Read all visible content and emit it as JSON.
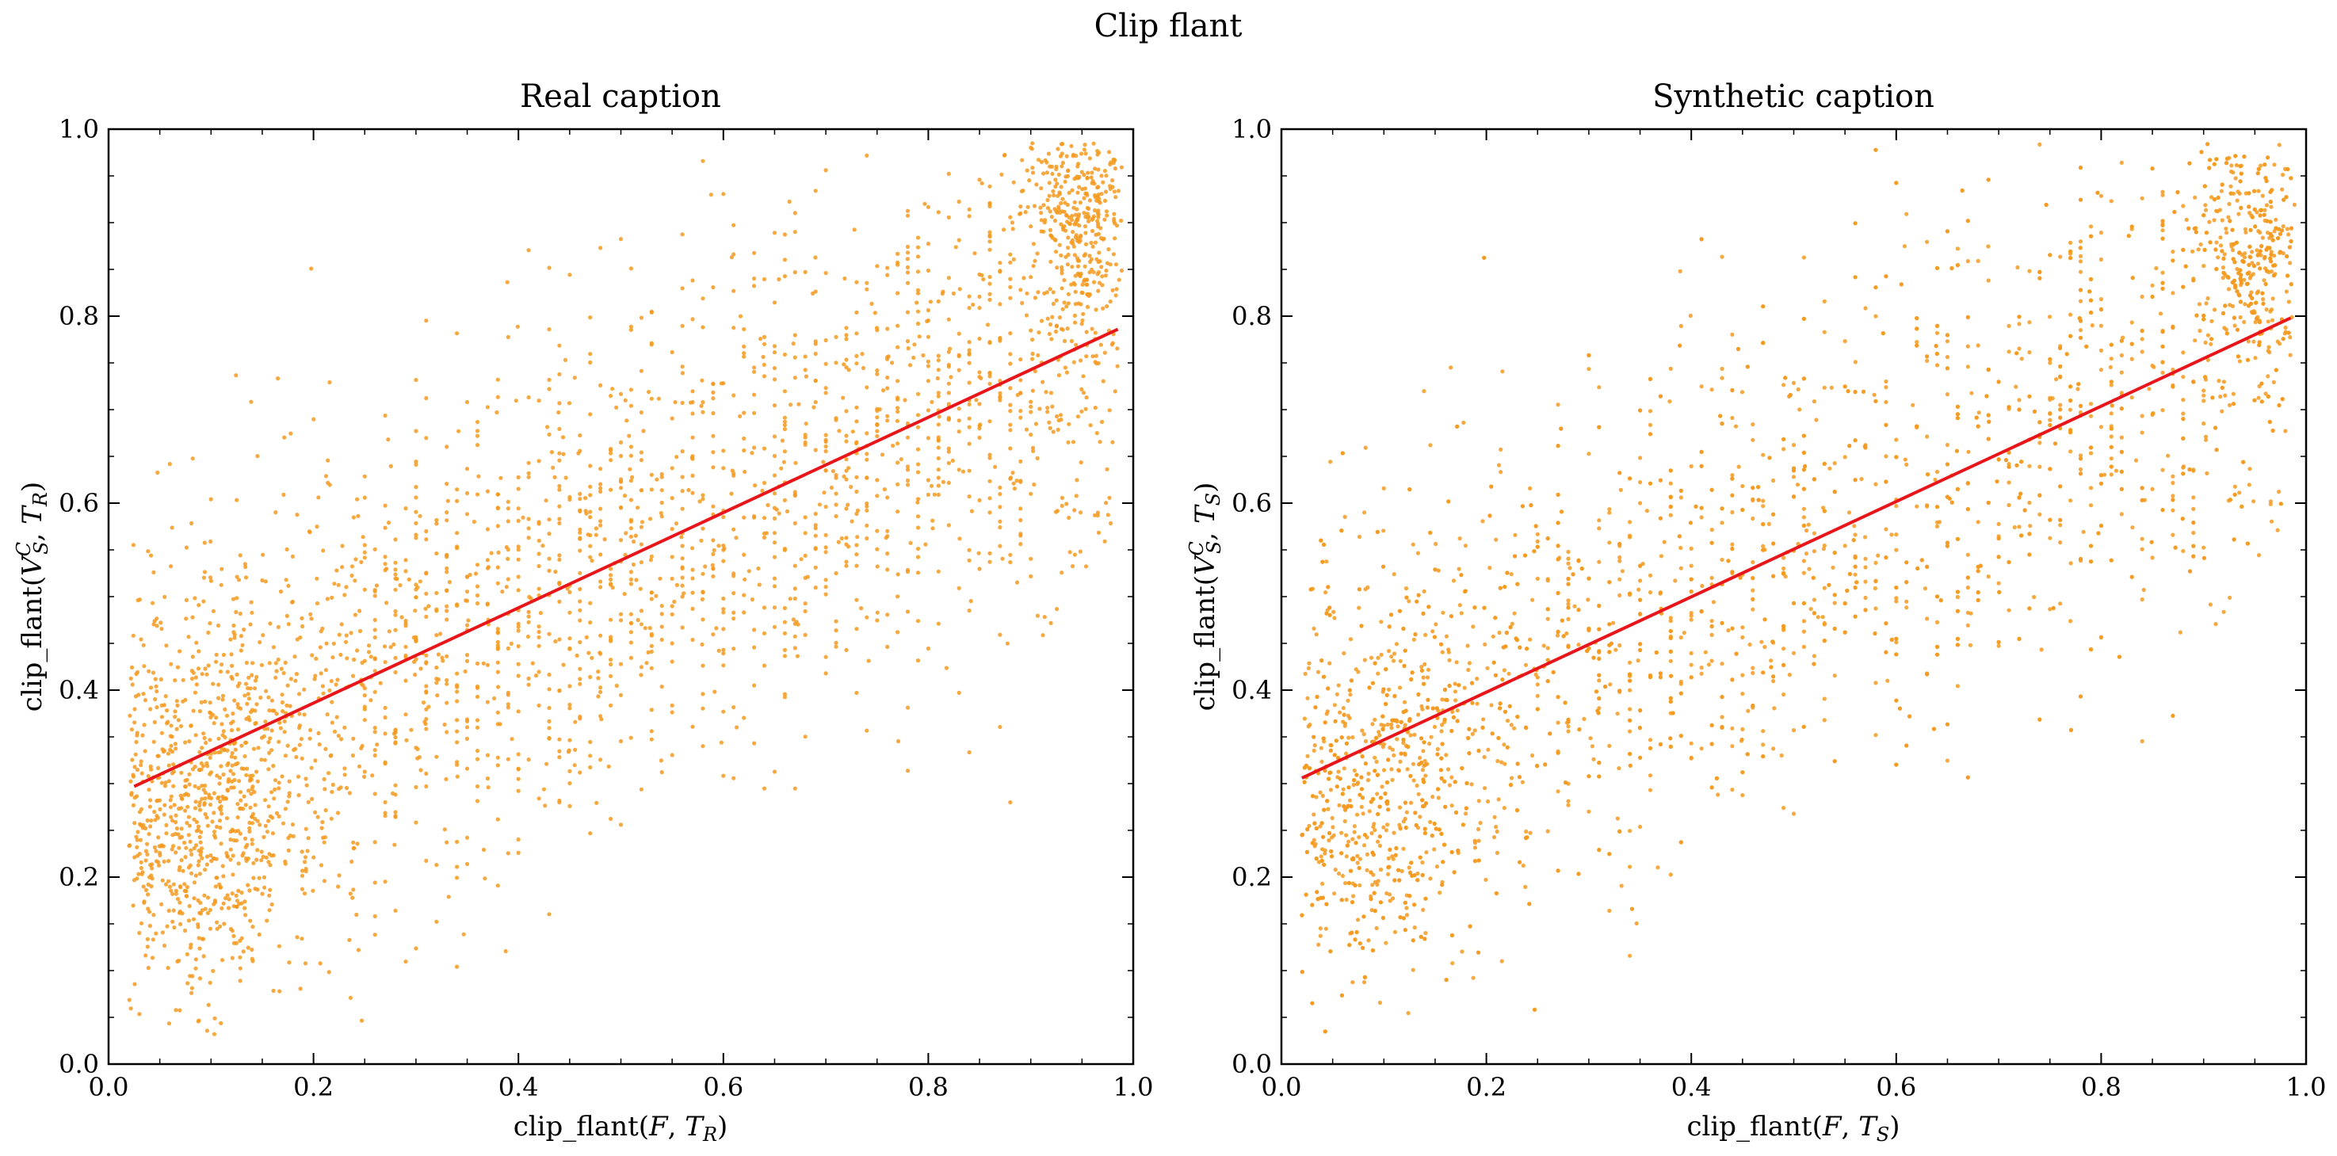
{
  "figure_title": "Clip flant",
  "colors": {
    "points": "#f39a1e",
    "fit_line": "#e8161b"
  },
  "chart_data": [
    {
      "type": "scatter",
      "title": "Real caption",
      "xlabel": "clip_flant(F, T_R)",
      "ylabel": "clip_flant(V_S^C, T_R)",
      "xlim": [
        0.0,
        1.0
      ],
      "ylim": [
        0.0,
        1.0
      ],
      "xticks": [
        "0.0",
        "0.2",
        "0.4",
        "0.6",
        "0.8",
        "1.0"
      ],
      "yticks": [
        "0.0",
        "0.2",
        "0.4",
        "0.6",
        "0.8",
        "1.0"
      ],
      "grid": false,
      "fit_line": {
        "x": [
          0.025,
          0.985
        ],
        "y": [
          0.297,
          0.786
        ]
      },
      "point_cloud": {
        "x_range": [
          0.02,
          0.985
        ],
        "cluster_low": [
          0.1,
          0.25
        ],
        "cluster_high": [
          0.95,
          0.92
        ]
      }
    },
    {
      "type": "scatter",
      "title": "Synthetic caption",
      "xlabel": "clip_flant(F, T_S)",
      "ylabel": "clip_flant(V_S^C, T_S)",
      "xlim": [
        0.0,
        1.0
      ],
      "ylim": [
        0.0,
        1.0
      ],
      "xticks": [
        "0.0",
        "0.2",
        "0.4",
        "0.6",
        "0.8",
        "1.0"
      ],
      "yticks": [
        "0.0",
        "0.2",
        "0.4",
        "0.6",
        "0.8",
        "1.0"
      ],
      "grid": false,
      "fit_line": {
        "x": [
          0.02,
          0.985
        ],
        "y": [
          0.306,
          0.798
        ]
      },
      "point_cloud": {
        "x_range": [
          0.02,
          0.985
        ],
        "cluster_low": [
          0.1,
          0.28
        ],
        "cluster_high": [
          0.95,
          0.88
        ]
      }
    }
  ]
}
